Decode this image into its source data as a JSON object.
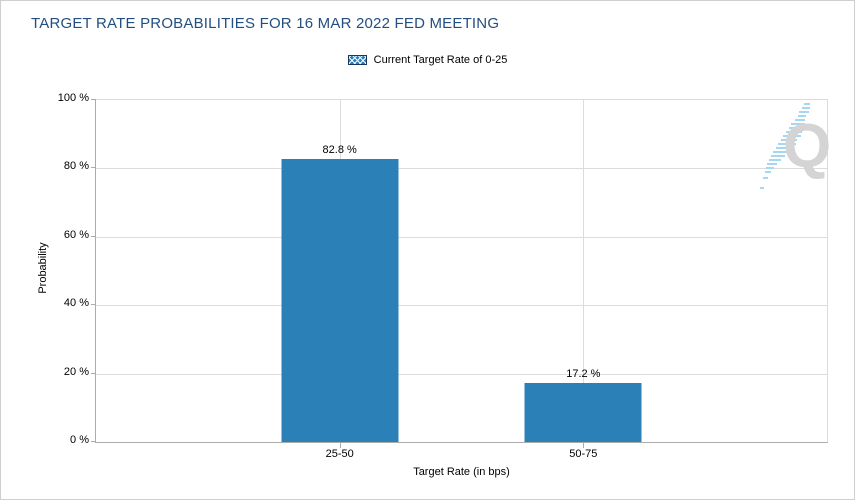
{
  "title": "TARGET RATE PROBABILITIES FOR 16 MAR 2022 FED MEETING",
  "legend": {
    "label": "Current Target Rate of 0-25"
  },
  "watermark": {
    "letter": "Q"
  },
  "chart_data": {
    "type": "bar",
    "title": "TARGET RATE PROBABILITIES FOR 16 MAR 2022 FED MEETING",
    "categories": [
      "25-50",
      "50-75"
    ],
    "values": [
      82.8,
      17.2
    ],
    "value_labels": [
      "82.8 %",
      "17.2 %"
    ],
    "xlabel": "Target Rate (in bps)",
    "ylabel": "Probability",
    "ylim": [
      0,
      100
    ],
    "ytick_labels": [
      "100 %",
      "80 %",
      "60 %",
      "40 %",
      "20 %",
      "0 %"
    ],
    "legend_entries": [
      "Current Target Rate of 0-25"
    ],
    "legend_position": "top-center",
    "grid": true,
    "bar_color": "#2b80b8"
  },
  "colors": {
    "title": "#234e80",
    "bar": "#2b80b8",
    "gridline": "#dcdcdc",
    "axis": "#ababab",
    "legend_swatch_border": "#17365d",
    "watermark_letter": "#d4d4d4",
    "watermark_dash": "#a6d7f2"
  }
}
